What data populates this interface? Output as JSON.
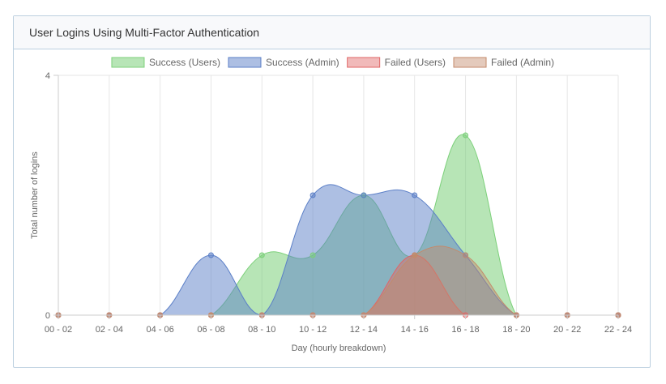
{
  "panel": {
    "title": "User Logins Using Multi-Factor Authentication"
  },
  "chart_data": {
    "type": "area",
    "title": "User Logins Using Multi-Factor Authentication",
    "xlabel": "Day (hourly breakdown)",
    "ylabel": "Total number of logins",
    "categories": [
      "00 - 02",
      "02 - 04",
      "04 - 06",
      "06 - 08",
      "08 - 10",
      "10 - 12",
      "12 - 14",
      "14 - 16",
      "16 - 18",
      "18 - 20",
      "20 - 22",
      "22 - 24"
    ],
    "ylim": [
      0,
      4
    ],
    "yticks": [
      "0",
      "4"
    ],
    "grid": true,
    "legend_position": "top",
    "smooth": true,
    "series": [
      {
        "name": "Success (Users)",
        "values": [
          0,
          0,
          0,
          0,
          1,
          1,
          2,
          1,
          3,
          0,
          0,
          0
        ],
        "color": "#7cd07a",
        "fill": "rgba(124, 208, 122, 0.55)"
      },
      {
        "name": "Success (Admin)",
        "values": [
          0,
          0,
          0,
          1,
          0,
          2,
          2,
          2,
          1,
          0,
          0,
          0
        ],
        "color": "#5b7fc7",
        "fill": "rgba(91, 127, 199, 0.50)"
      },
      {
        "name": "Failed (Users)",
        "values": [
          0,
          0,
          0,
          0,
          0,
          0,
          0,
          1,
          0,
          0,
          0,
          0
        ],
        "color": "#e06666",
        "fill": "rgba(224, 102, 102, 0.45)"
      },
      {
        "name": "Failed (Admin)",
        "values": [
          0,
          0,
          0,
          0,
          0,
          0,
          0,
          1,
          1,
          0,
          0,
          0
        ],
        "color": "#c48a6b",
        "fill": "rgba(196, 138, 107, 0.45)"
      }
    ]
  }
}
